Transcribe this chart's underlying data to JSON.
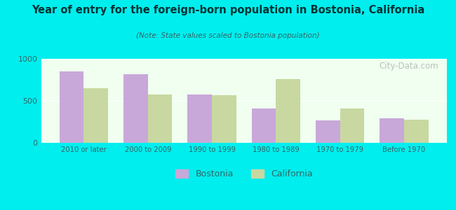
{
  "title": "Year of entry for the foreign-born population in Bostonia, California",
  "subtitle": "(Note: State values scaled to Bostonia population)",
  "categories": [
    "2010 or later",
    "2000 to 2009",
    "1990 to 1999",
    "1980 to 1989",
    "1970 to 1979",
    "Before 1970"
  ],
  "bostonia_values": [
    848,
    820,
    578,
    410,
    270,
    290
  ],
  "california_values": [
    648,
    578,
    568,
    758,
    410,
    278
  ],
  "bostonia_color": "#C8A8D8",
  "california_color": "#C8D8A0",
  "background_outer": "#00EEEE",
  "background_inner": "#F0FFF0",
  "ylim": [
    0,
    1000
  ],
  "yticks": [
    0,
    500,
    1000
  ],
  "bar_width": 0.38,
  "legend_bostonia": "Bostonia",
  "legend_california": "California",
  "watermark": "City-Data.com",
  "title_color": "#003333",
  "subtitle_color": "#336666",
  "tick_color": "#336666"
}
